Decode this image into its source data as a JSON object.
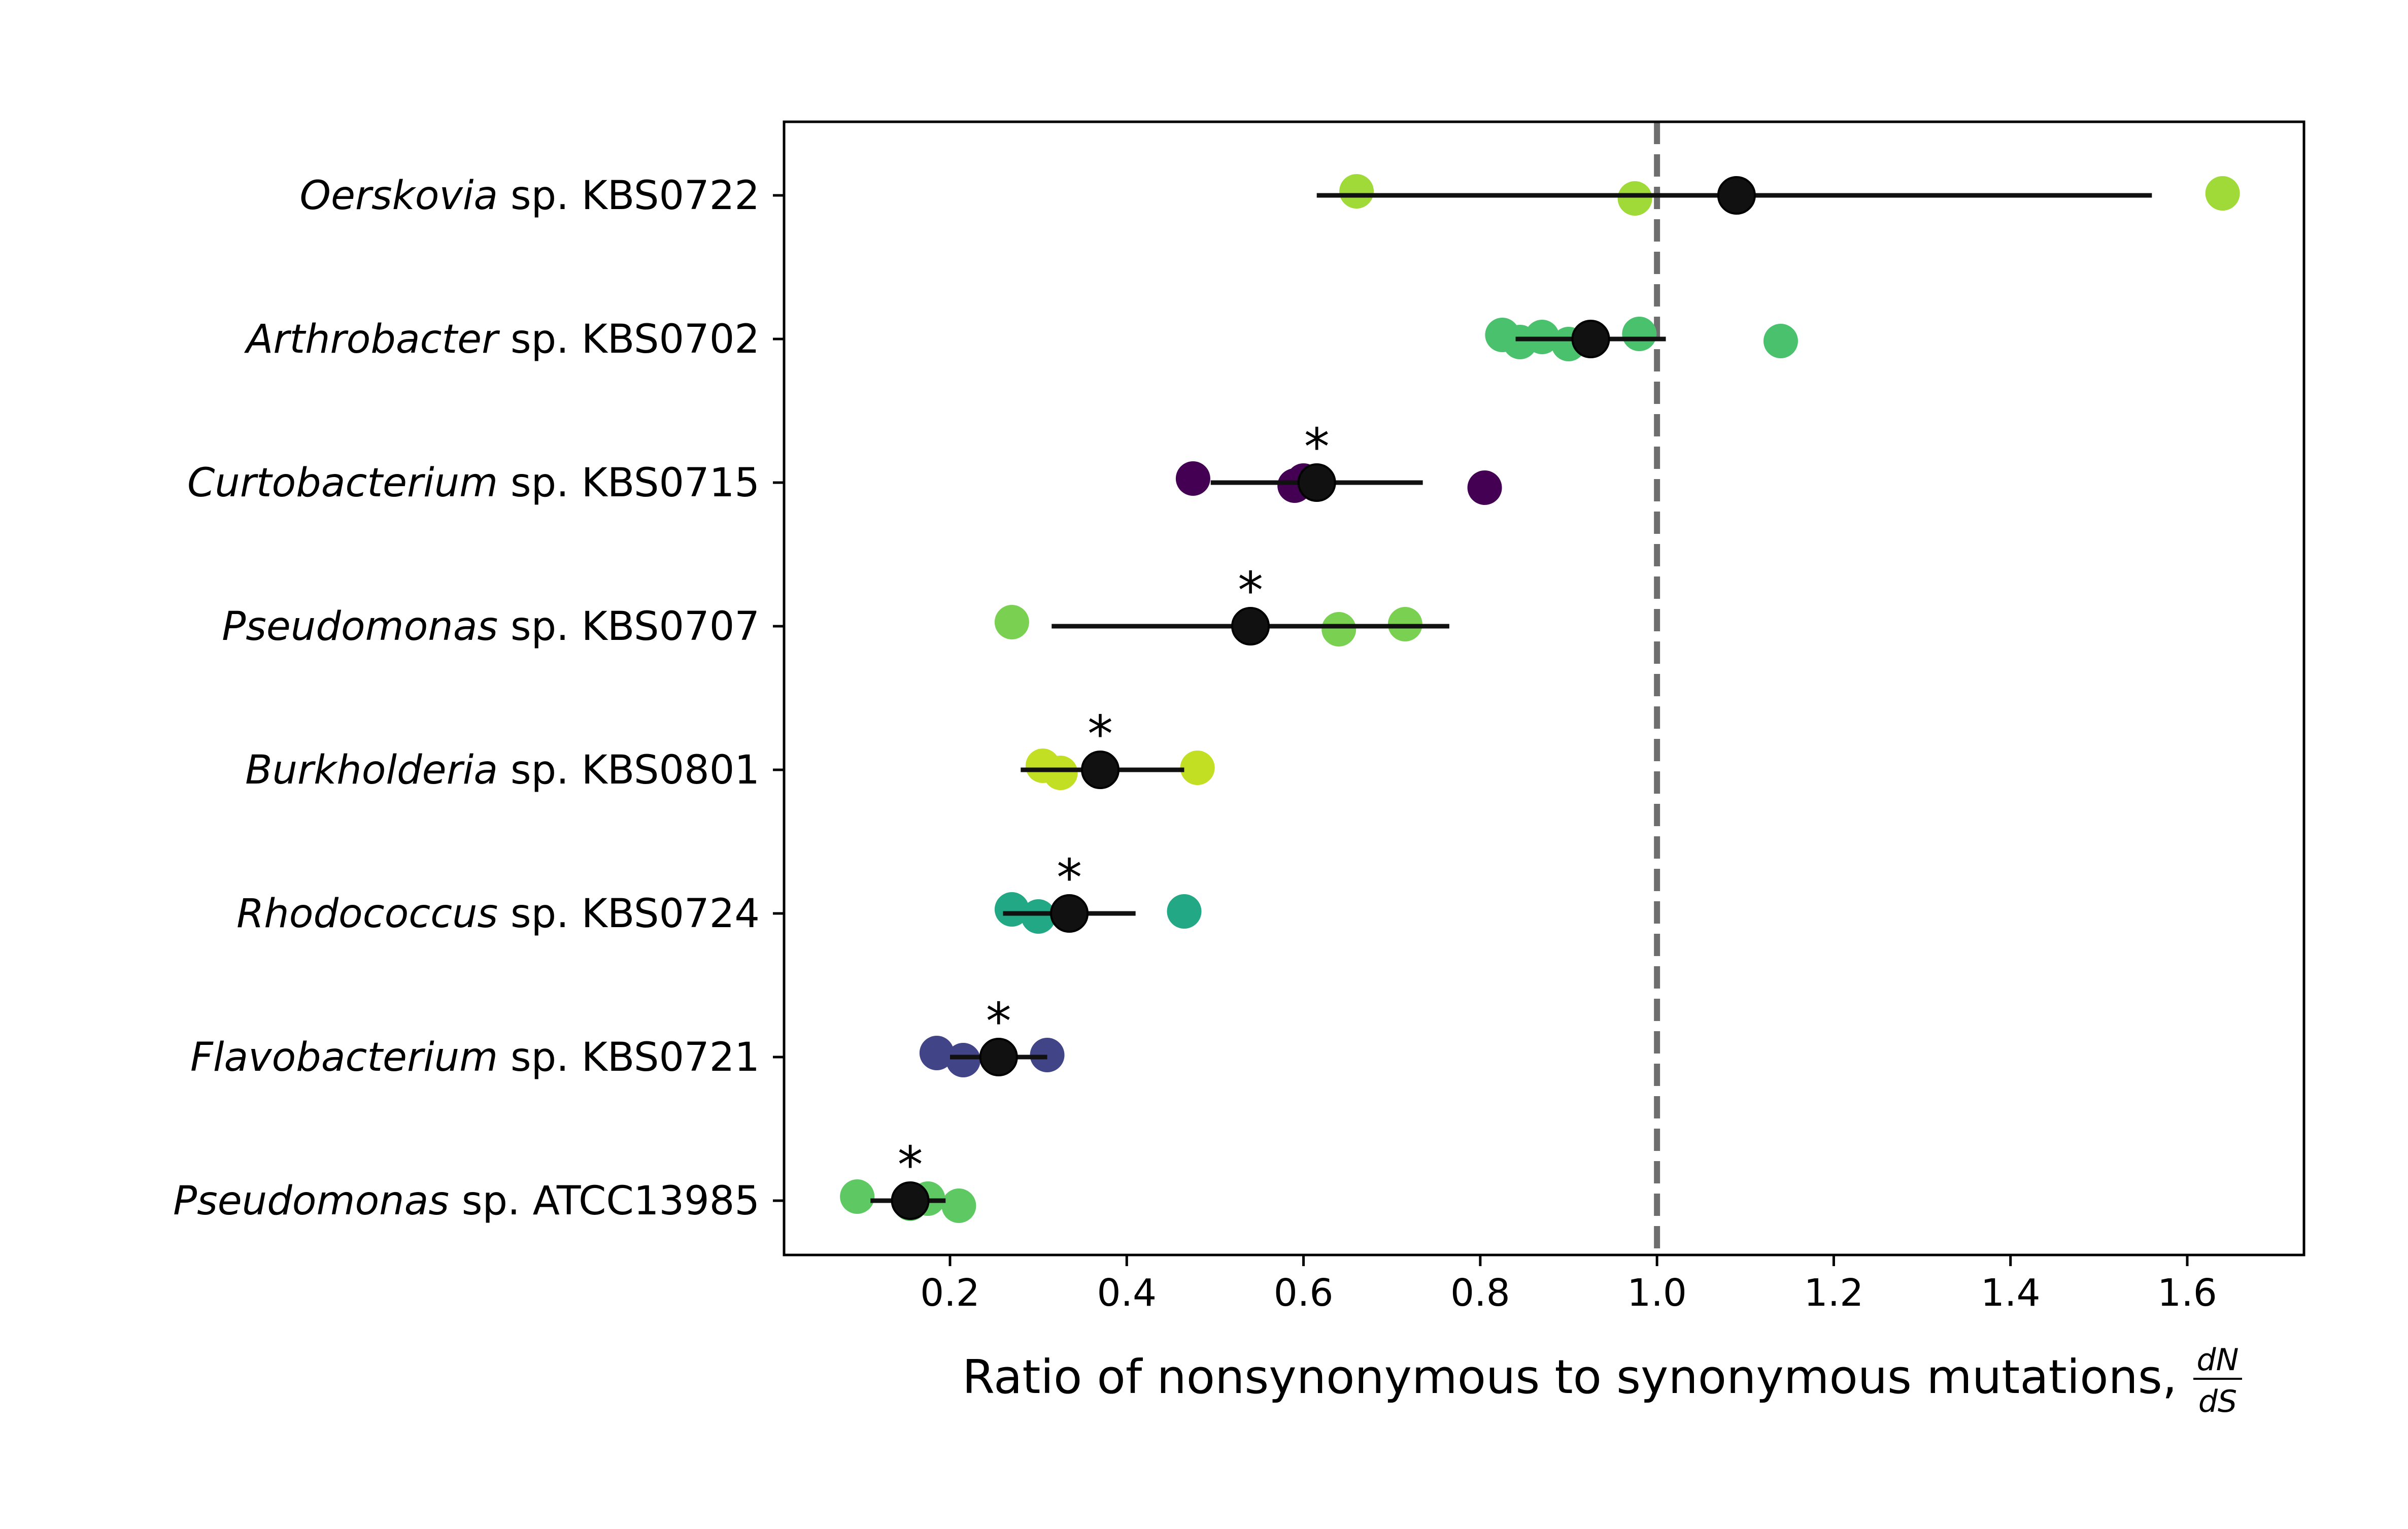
{
  "chart_data": {
    "type": "scatter",
    "xlabel": "Ratio of nonsynonymous to synonymous mutations,",
    "xlabel_fraction": {
      "numerator": "dN",
      "denominator": "dS"
    },
    "xlim": [
      0.0,
      1.72
    ],
    "xticks": [
      0.2,
      0.4,
      0.6,
      0.8,
      1.0,
      1.2,
      1.4,
      1.6
    ],
    "xtick_labels": [
      "0.2",
      "0.4",
      "0.6",
      "0.8",
      "1.0",
      "1.2",
      "1.4",
      "1.6"
    ],
    "reference_line": {
      "x": 1.0,
      "style": "dashed",
      "color": "#6e6e6e"
    },
    "mean_color": "#111111",
    "grid": false,
    "rows": [
      {
        "genus": "Oerskovia",
        "suffix": "sp. KBS0722",
        "color": "#a0da39",
        "points": [
          0.66,
          0.975,
          1.64
        ],
        "mean": 1.09,
        "ci": [
          0.615,
          1.56
        ],
        "significant": false,
        "significance_label": ""
      },
      {
        "genus": "Arthrobacter",
        "suffix": "sp. KBS0702",
        "color": "#4ac16d",
        "points": [
          0.825,
          0.845,
          0.87,
          0.9,
          0.98,
          1.14
        ],
        "mean": 0.925,
        "ci": [
          0.84,
          1.01
        ],
        "significant": false,
        "significance_label": ""
      },
      {
        "genus": "Curtobacterium",
        "suffix": "sp. KBS0715",
        "color": "#440154",
        "points": [
          0.475,
          0.59,
          0.6,
          0.805
        ],
        "mean": 0.615,
        "ci": [
          0.495,
          0.735
        ],
        "significant": true,
        "significance_label": "*"
      },
      {
        "genus": "Pseudomonas",
        "suffix": "sp. KBS0707",
        "color": "#7ad151",
        "points": [
          0.27,
          0.64,
          0.715
        ],
        "mean": 0.54,
        "ci": [
          0.315,
          0.765
        ],
        "significant": true,
        "significance_label": "*"
      },
      {
        "genus": "Burkholderia",
        "suffix": "sp. KBS0801",
        "color": "#c2df23",
        "points": [
          0.305,
          0.325,
          0.48
        ],
        "mean": 0.37,
        "ci": [
          0.28,
          0.465
        ],
        "significant": true,
        "significance_label": "*"
      },
      {
        "genus": "Rhodococcus",
        "suffix": "sp. KBS0724",
        "color": "#22a884",
        "points": [
          0.27,
          0.3,
          0.465
        ],
        "mean": 0.335,
        "ci": [
          0.26,
          0.41
        ],
        "significant": true,
        "significance_label": "*"
      },
      {
        "genus": "Flavobacterium",
        "suffix": "sp. KBS0721",
        "color": "#414487",
        "points": [
          0.185,
          0.215,
          0.31
        ],
        "mean": 0.255,
        "ci": [
          0.2,
          0.31
        ],
        "significant": true,
        "significance_label": "*"
      },
      {
        "genus": "Pseudomonas",
        "suffix": "sp. ATCC13985",
        "color": "#5ec962",
        "points": [
          0.095,
          0.155,
          0.175,
          0.21
        ],
        "mean": 0.155,
        "ci": [
          0.11,
          0.195
        ],
        "significant": true,
        "significance_label": "*"
      }
    ]
  }
}
